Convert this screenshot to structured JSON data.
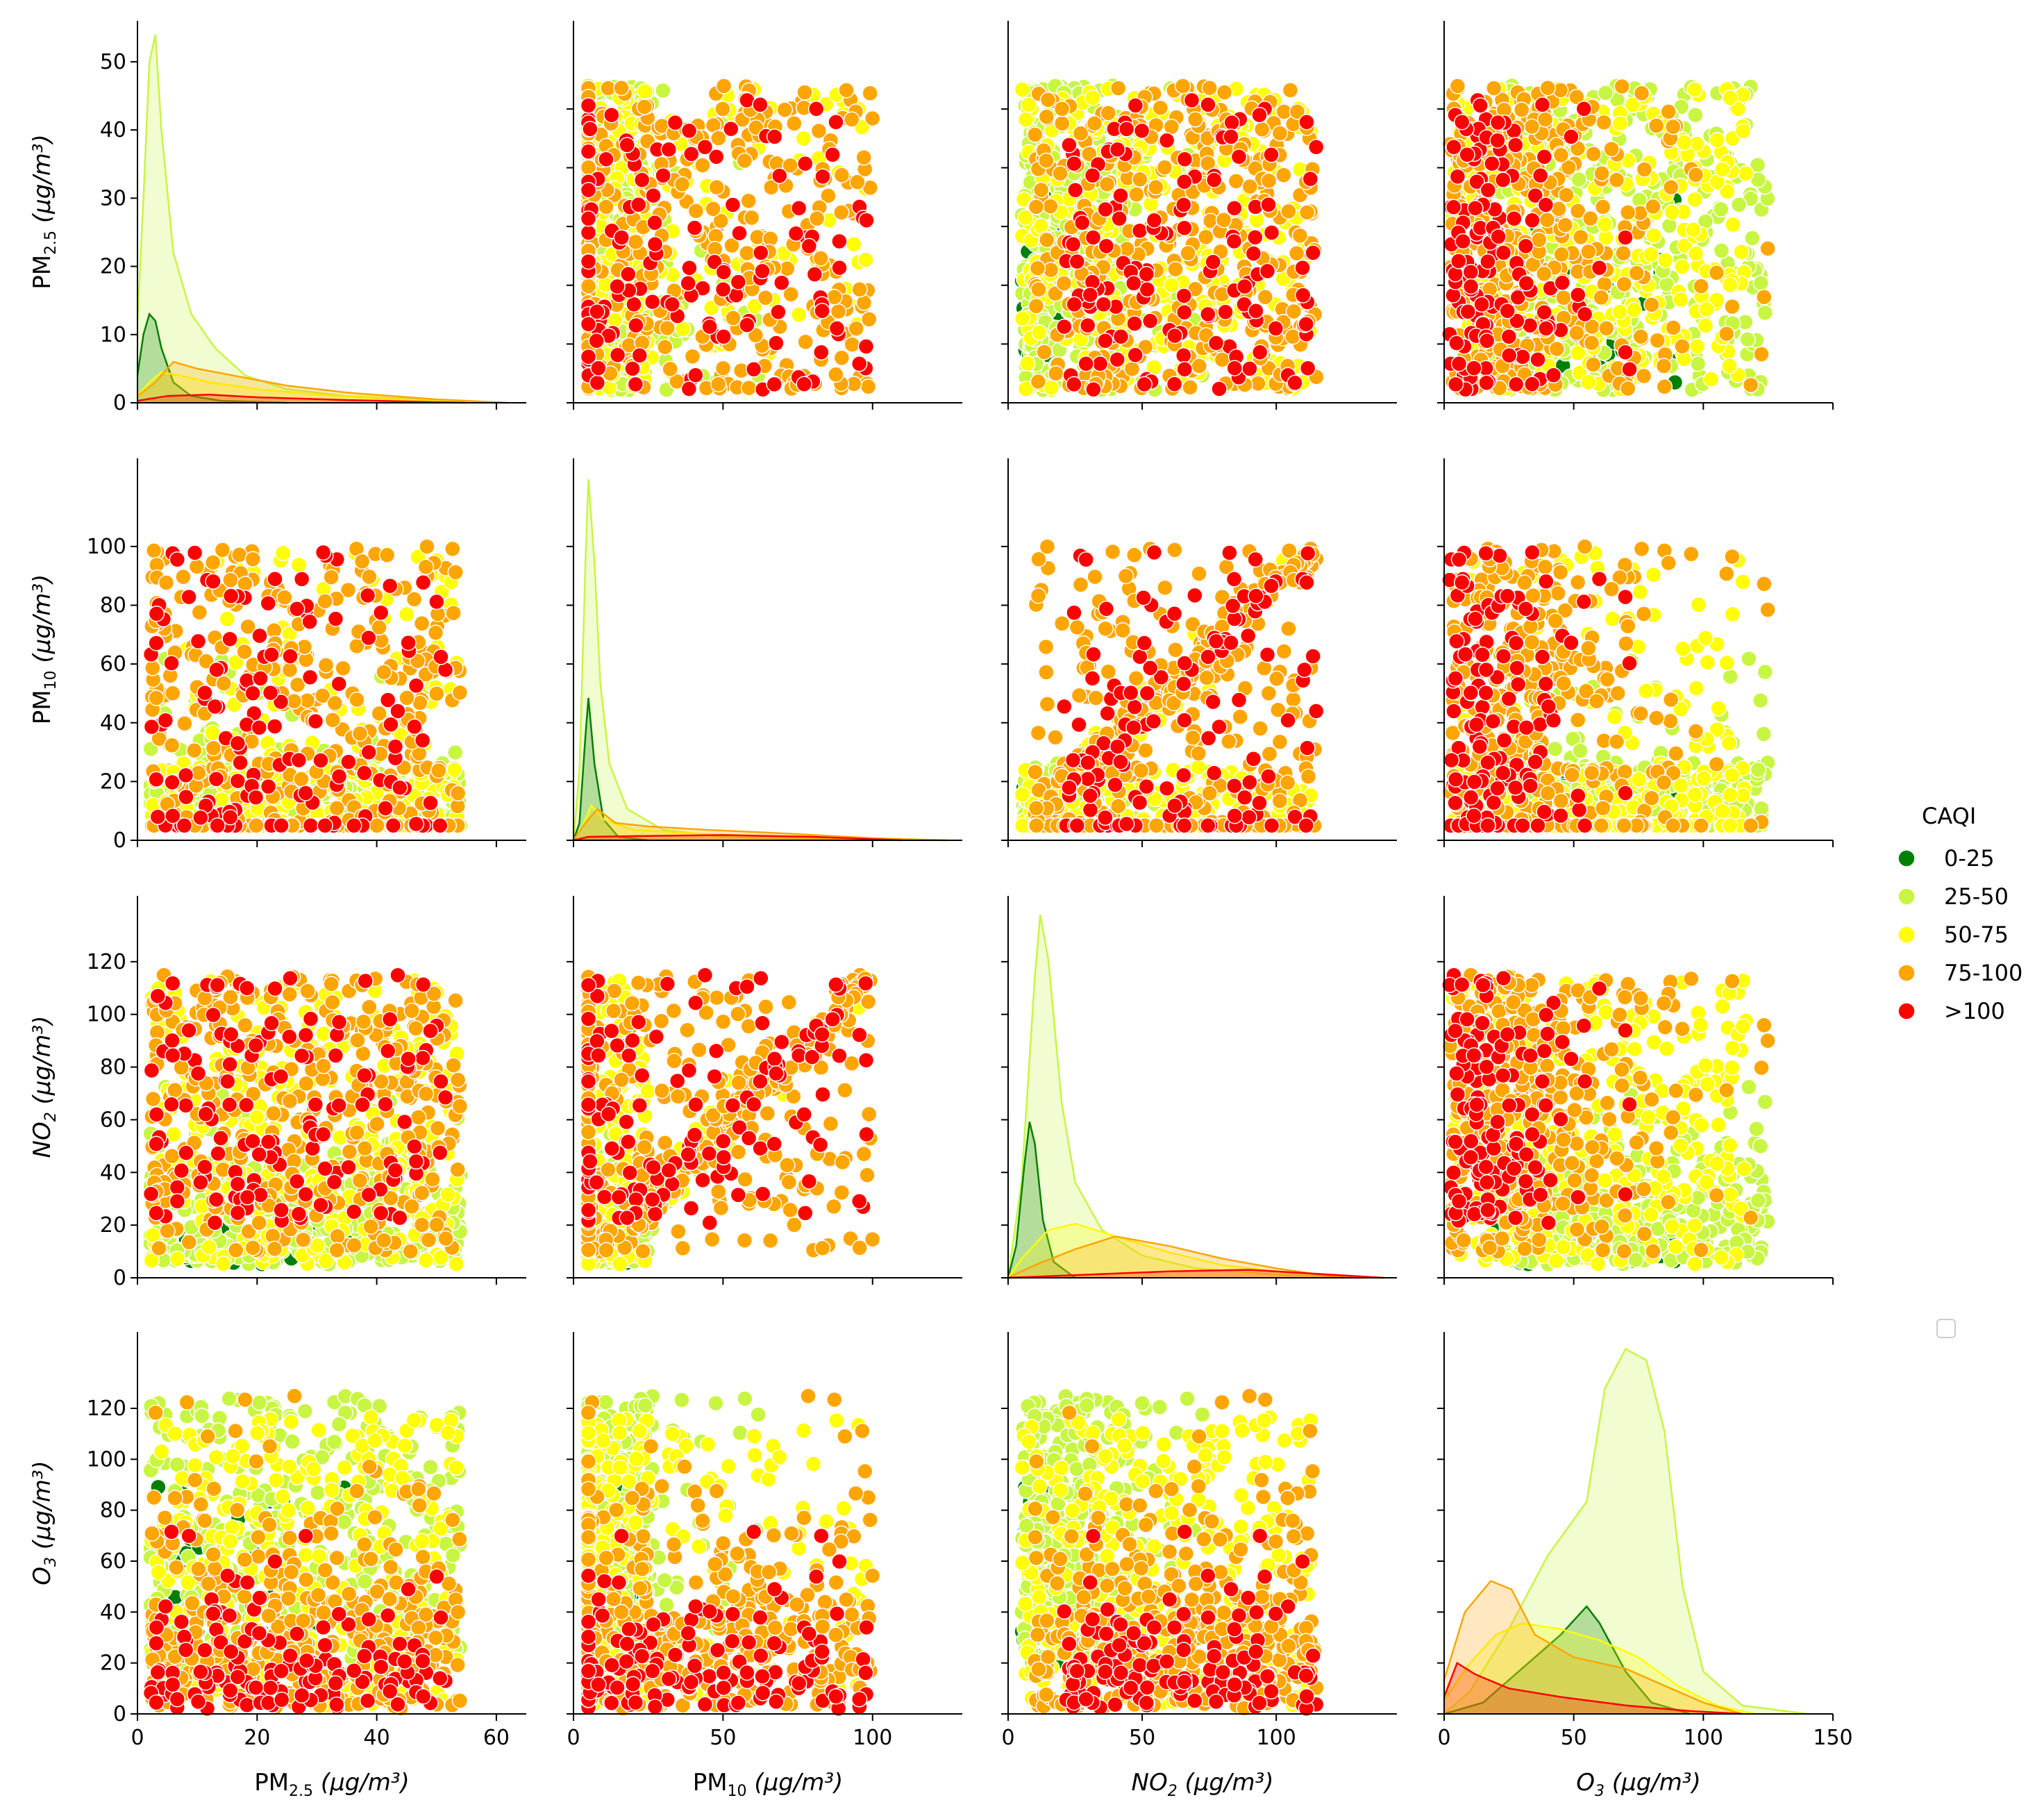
{
  "chart_data": {
    "type": "pairplot",
    "hue_title": "CAQI",
    "variables": [
      {
        "key": "pm25",
        "label_main": "PM",
        "label_sub": "2.5",
        "label_unit": "(μg/m³)",
        "label_italic_main": false,
        "range": [
          0,
          65
        ],
        "ticks": [
          0,
          20,
          40,
          60
        ],
        "diag_ylim": [
          0,
          56
        ],
        "diag_ticks": [
          0,
          10,
          20,
          30,
          40,
          50
        ]
      },
      {
        "key": "pm10",
        "label_main": "PM",
        "label_sub": "10",
        "label_unit": "(μg/m³)",
        "label_italic_main": false,
        "range": [
          0,
          130
        ],
        "ticks": [
          0,
          50,
          100
        ],
        "diag_ylim": [
          0,
          110
        ],
        "diag_ticks": [
          0,
          20,
          40,
          60,
          80,
          100
        ]
      },
      {
        "key": "no2",
        "label_main": "NO",
        "label_sub": "2",
        "label_unit": "(μg/m³)",
        "label_italic_main": true,
        "range": [
          0,
          145
        ],
        "ticks": [
          0,
          50,
          100
        ],
        "diag_ylim": [
          0,
          120
        ],
        "diag_ticks": [
          0,
          20,
          40,
          60,
          80,
          100,
          120
        ]
      },
      {
        "key": "o3",
        "label_main": "O",
        "label_sub": "3",
        "label_unit": "(μg/m³)",
        "label_italic_main": true,
        "range": [
          0,
          150
        ],
        "ticks": [
          0,
          50,
          100,
          150
        ],
        "diag_ylim": [
          0,
          135
        ],
        "diag_ticks": [
          0,
          20,
          40,
          60,
          80,
          100,
          120
        ]
      }
    ],
    "categories": [
      {
        "name": "0-25",
        "color": "#008000"
      },
      {
        "name": "25-50",
        "color": "#c8f542"
      },
      {
        "name": "50-75",
        "color": "#ffff00"
      },
      {
        "name": "75-100",
        "color": "#ffa500"
      },
      {
        "name": ">100",
        "color": "#ff0000"
      }
    ],
    "kde": {
      "pm25": [
        {
          "cat": "25-50",
          "points": [
            [
              0,
              12
            ],
            [
              1,
              30
            ],
            [
              2,
              50
            ],
            [
              3,
              54
            ],
            [
              4,
              40
            ],
            [
              6,
              22
            ],
            [
              9,
              13
            ],
            [
              13,
              8
            ],
            [
              18,
              4
            ],
            [
              25,
              2
            ],
            [
              35,
              1
            ],
            [
              50,
              0.4
            ],
            [
              62,
              0
            ]
          ]
        },
        {
          "cat": "0-25",
          "points": [
            [
              0,
              4
            ],
            [
              1,
              10
            ],
            [
              2,
              13
            ],
            [
              3,
              12
            ],
            [
              4,
              8
            ],
            [
              6,
              3
            ],
            [
              9,
              1
            ],
            [
              14,
              0.3
            ],
            [
              25,
              0
            ]
          ]
        },
        {
          "cat": "50-75",
          "points": [
            [
              0,
              1
            ],
            [
              2,
              3
            ],
            [
              4,
              4.5
            ],
            [
              7,
              4
            ],
            [
              12,
              3
            ],
            [
              20,
              2
            ],
            [
              30,
              1.2
            ],
            [
              45,
              0.4
            ],
            [
              60,
              0
            ]
          ]
        },
        {
          "cat": "75-100",
          "points": [
            [
              0,
              1
            ],
            [
              3,
              3
            ],
            [
              6,
              6
            ],
            [
              10,
              5
            ],
            [
              16,
              4
            ],
            [
              25,
              2.5
            ],
            [
              35,
              1.5
            ],
            [
              50,
              0.5
            ],
            [
              62,
              0
            ]
          ]
        },
        {
          "cat": ">100",
          "points": [
            [
              0,
              0.3
            ],
            [
              5,
              1
            ],
            [
              12,
              1.2
            ],
            [
              20,
              0.8
            ],
            [
              35,
              0.4
            ],
            [
              55,
              0
            ]
          ]
        }
      ],
      "pm10": [
        {
          "cat": "25-50",
          "points": [
            [
              0,
              0
            ],
            [
              2,
              20
            ],
            [
              4,
              80
            ],
            [
              5,
              104
            ],
            [
              7,
              80
            ],
            [
              9,
              45
            ],
            [
              12,
              22
            ],
            [
              18,
              9
            ],
            [
              30,
              3
            ],
            [
              50,
              1
            ],
            [
              80,
              0.3
            ],
            [
              125,
              0
            ]
          ]
        },
        {
          "cat": "0-25",
          "points": [
            [
              0,
              0
            ],
            [
              2,
              5
            ],
            [
              4,
              30
            ],
            [
              5,
              41
            ],
            [
              7,
              22
            ],
            [
              10,
              6
            ],
            [
              15,
              1
            ],
            [
              25,
              0
            ]
          ]
        },
        {
          "cat": "50-75",
          "points": [
            [
              0,
              0
            ],
            [
              3,
              4
            ],
            [
              6,
              10
            ],
            [
              10,
              6
            ],
            [
              20,
              3
            ],
            [
              40,
              2
            ],
            [
              70,
              1
            ],
            [
              100,
              0.3
            ],
            [
              125,
              0
            ]
          ]
        },
        {
          "cat": "75-100",
          "points": [
            [
              0,
              0
            ],
            [
              4,
              5
            ],
            [
              8,
              9
            ],
            [
              14,
              5
            ],
            [
              25,
              4
            ],
            [
              45,
              3
            ],
            [
              70,
              2
            ],
            [
              100,
              0.6
            ],
            [
              125,
              0
            ]
          ]
        },
        {
          "cat": ">100",
          "points": [
            [
              0,
              0
            ],
            [
              5,
              1
            ],
            [
              20,
              1.2
            ],
            [
              50,
              1.5
            ],
            [
              80,
              1
            ],
            [
              110,
              0
            ]
          ]
        }
      ],
      "no2": [
        {
          "cat": "25-50",
          "points": [
            [
              0,
              0
            ],
            [
              5,
              30
            ],
            [
              10,
              95
            ],
            [
              12,
              114
            ],
            [
              15,
              100
            ],
            [
              20,
              55
            ],
            [
              25,
              30
            ],
            [
              35,
              15
            ],
            [
              50,
              7
            ],
            [
              70,
              3
            ],
            [
              100,
              1
            ],
            [
              130,
              0
            ]
          ]
        },
        {
          "cat": "0-25",
          "points": [
            [
              0,
              0
            ],
            [
              3,
              10
            ],
            [
              6,
              35
            ],
            [
              8,
              49
            ],
            [
              10,
              42
            ],
            [
              13,
              18
            ],
            [
              17,
              5
            ],
            [
              25,
              0
            ]
          ]
        },
        {
          "cat": "50-75",
          "points": [
            [
              0,
              0
            ],
            [
              5,
              6
            ],
            [
              15,
              15
            ],
            [
              25,
              17
            ],
            [
              40,
              13
            ],
            [
              60,
              8
            ],
            [
              80,
              4
            ],
            [
              100,
              2
            ],
            [
              130,
              0
            ]
          ]
        },
        {
          "cat": "75-100",
          "points": [
            [
              0,
              0
            ],
            [
              10,
              4
            ],
            [
              25,
              9
            ],
            [
              40,
              13
            ],
            [
              60,
              10
            ],
            [
              80,
              6
            ],
            [
              100,
              3
            ],
            [
              120,
              0.5
            ],
            [
              140,
              0
            ]
          ]
        },
        {
          "cat": ">100",
          "points": [
            [
              0,
              0
            ],
            [
              30,
              1
            ],
            [
              60,
              2
            ],
            [
              90,
              2.5
            ],
            [
              110,
              1.5
            ],
            [
              140,
              0
            ]
          ]
        }
      ],
      "o3": [
        {
          "cat": "25-50",
          "points": [
            [
              0,
              0
            ],
            [
              10,
              8
            ],
            [
              25,
              30
            ],
            [
              40,
              56
            ],
            [
              55,
              75
            ],
            [
              62,
              115
            ],
            [
              70,
              129
            ],
            [
              78,
              125
            ],
            [
              85,
              100
            ],
            [
              92,
              45
            ],
            [
              100,
              15
            ],
            [
              115,
              3
            ],
            [
              140,
              0
            ]
          ]
        },
        {
          "cat": "0-25",
          "points": [
            [
              0,
              0
            ],
            [
              15,
              4
            ],
            [
              30,
              16
            ],
            [
              45,
              28
            ],
            [
              55,
              38
            ],
            [
              60,
              32
            ],
            [
              70,
              15
            ],
            [
              80,
              4
            ],
            [
              95,
              0
            ]
          ]
        },
        {
          "cat": "50-75",
          "points": [
            [
              0,
              5
            ],
            [
              10,
              18
            ],
            [
              20,
              28
            ],
            [
              30,
              32
            ],
            [
              45,
              30
            ],
            [
              60,
              26
            ],
            [
              75,
              20
            ],
            [
              90,
              10
            ],
            [
              105,
              3
            ],
            [
              120,
              0
            ]
          ]
        },
        {
          "cat": "75-100",
          "points": [
            [
              0,
              12
            ],
            [
              8,
              36
            ],
            [
              18,
              47
            ],
            [
              26,
              44
            ],
            [
              35,
              28
            ],
            [
              50,
              20
            ],
            [
              70,
              16
            ],
            [
              85,
              10
            ],
            [
              100,
              4
            ],
            [
              115,
              0
            ]
          ]
        },
        {
          "cat": ">100",
          "points": [
            [
              0,
              6
            ],
            [
              5,
              18
            ],
            [
              12,
              14
            ],
            [
              25,
              9
            ],
            [
              45,
              6
            ],
            [
              70,
              3
            ],
            [
              95,
              1
            ],
            [
              115,
              0
            ]
          ]
        }
      ]
    }
  }
}
